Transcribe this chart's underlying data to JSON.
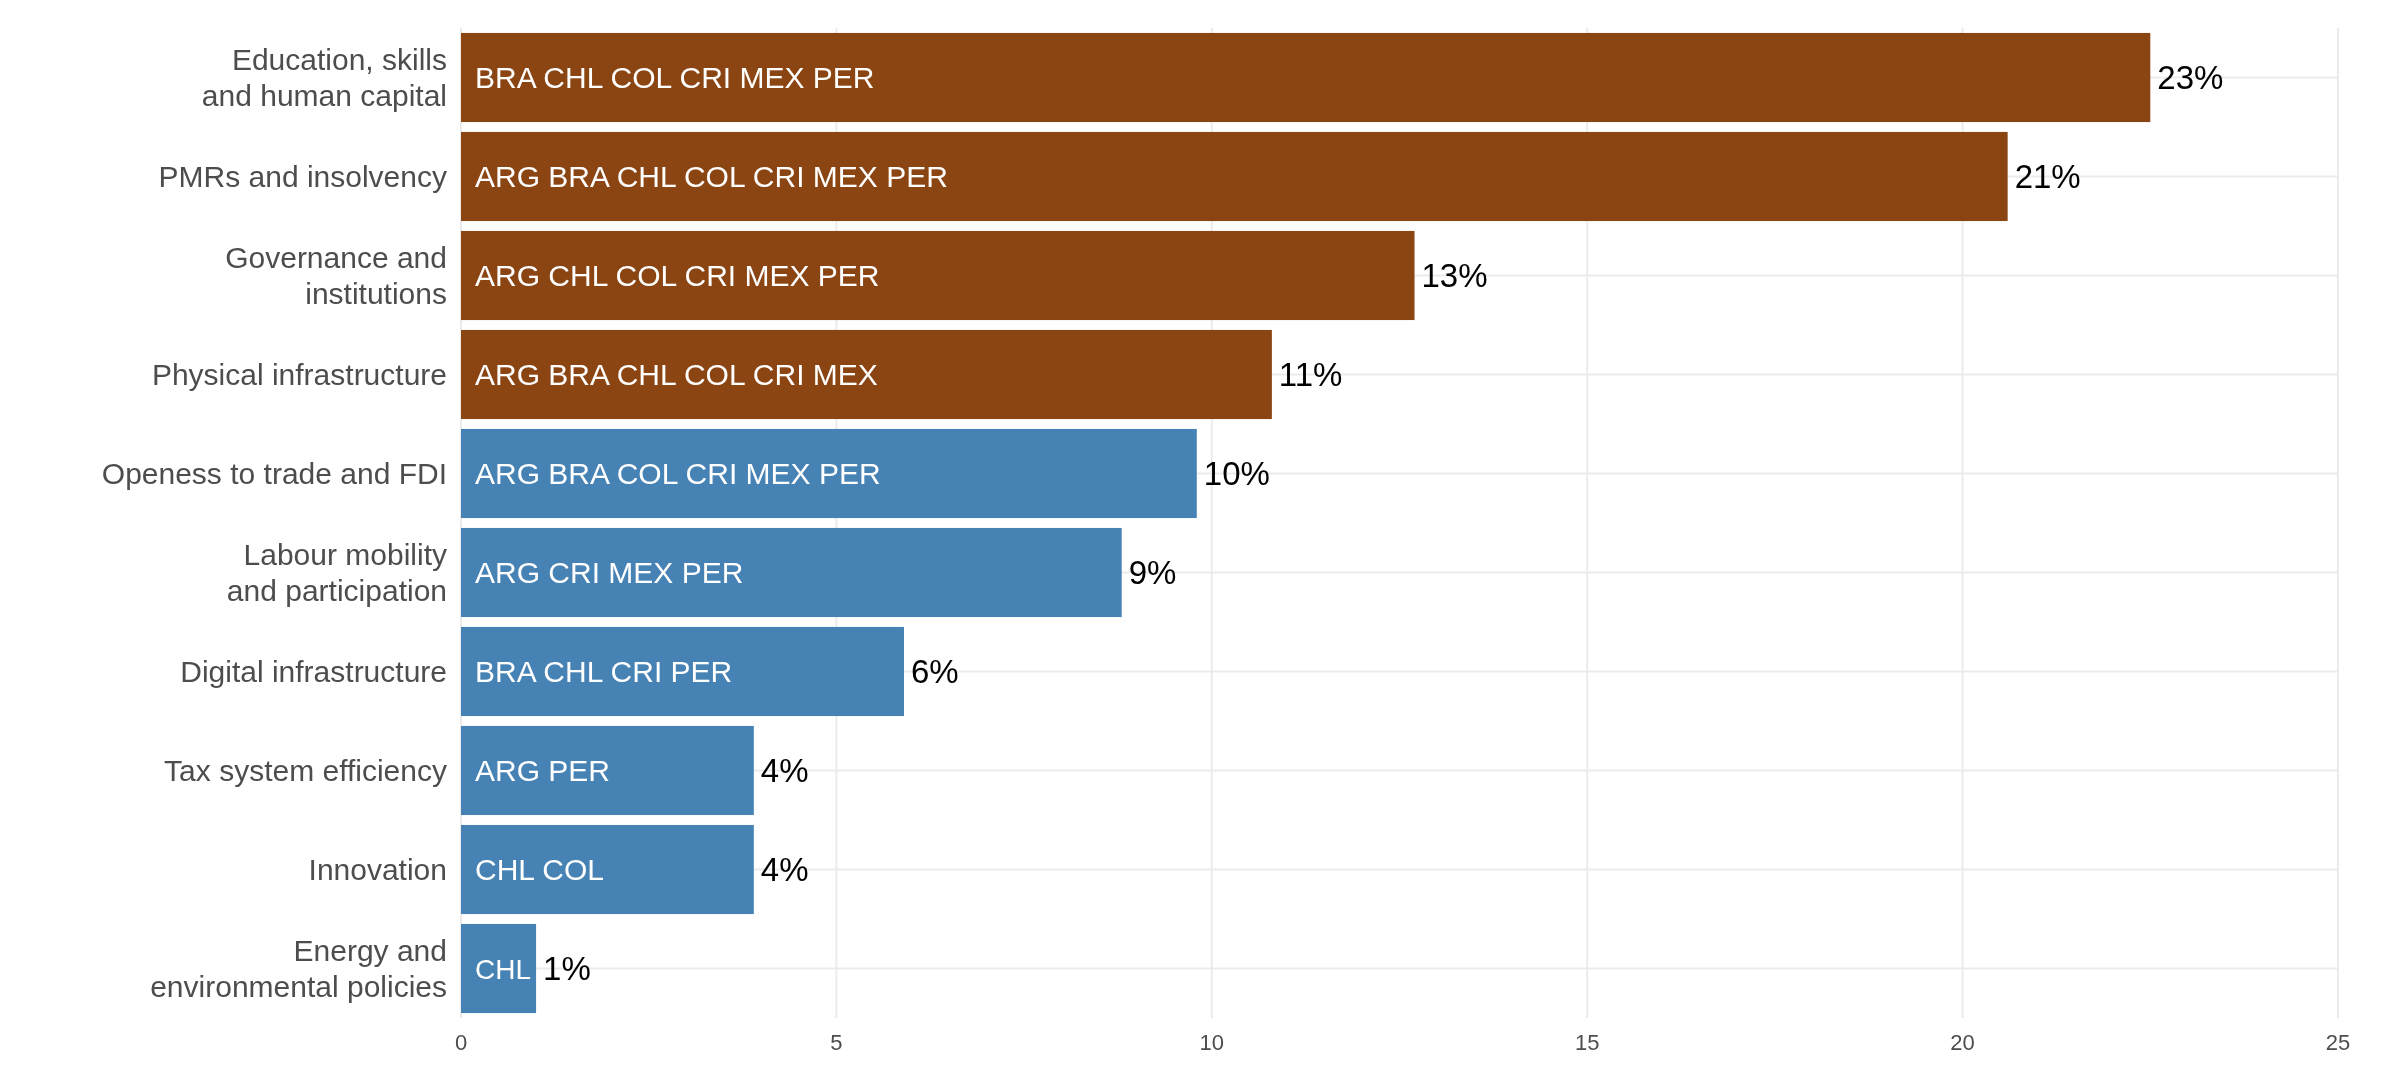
{
  "chart_data": {
    "type": "bar",
    "orientation": "horizontal",
    "categories": [
      "Education, skills\nand human capital",
      "PMRs and insolvency",
      "Governance and\ninstitutions",
      "Physical infrastructure",
      "Openess to trade and FDI",
      "Labour mobility\nand participation",
      "Digital infrastructure",
      "Tax system efficiency",
      "Innovation",
      "Energy and\nenvironmental policies"
    ],
    "values": [
      22.5,
      20.6,
      12.7,
      10.8,
      9.8,
      8.8,
      5.9,
      3.9,
      3.9,
      1.0
    ],
    "colors": [
      "#8b4513",
      "#8b4513",
      "#8b4513",
      "#8b4513",
      "#4682b4",
      "#4682b4",
      "#4682b4",
      "#4682b4",
      "#4682b4",
      "#4682b4"
    ],
    "value_labels": [
      "23%",
      "21%",
      "13%",
      "11%",
      "10%",
      "9%",
      "6%",
      "4%",
      "4%",
      "1%"
    ],
    "xlim": [
      0,
      25
    ],
    "xticks": [
      0,
      5,
      10,
      15,
      20,
      25
    ],
    "grid": true,
    "annotations": [
      {
        "text": "BRA CHL COL CRI MEX PER",
        "y": "Education, skills\nand human capital"
      },
      {
        "text": "ARG BRA CHL COL CRI MEX PER",
        "y": "PMRs and insolvency"
      },
      {
        "text": "ARG CHL COL CRI MEX PER",
        "y": "Governance and\ninstitutions"
      },
      {
        "text": "ARG BRA CHL COL CRI MEX",
        "y": "Physical infrastructure"
      },
      {
        "text": "ARG BRA COL CRI MEX PER",
        "y": "Openess to trade and FDI"
      },
      {
        "text": "ARG CRI MEX PER",
        "y": "Labour mobility\nand participation"
      },
      {
        "text": "BRA CHL CRI PER",
        "y": "Digital infrastructure"
      },
      {
        "text": "ARG PER",
        "y": "Tax system efficiency"
      },
      {
        "text": "CHL COL",
        "y": "Innovation"
      },
      {
        "text": "CHL",
        "y": "Energy and\nenvironmental policies"
      }
    ]
  }
}
